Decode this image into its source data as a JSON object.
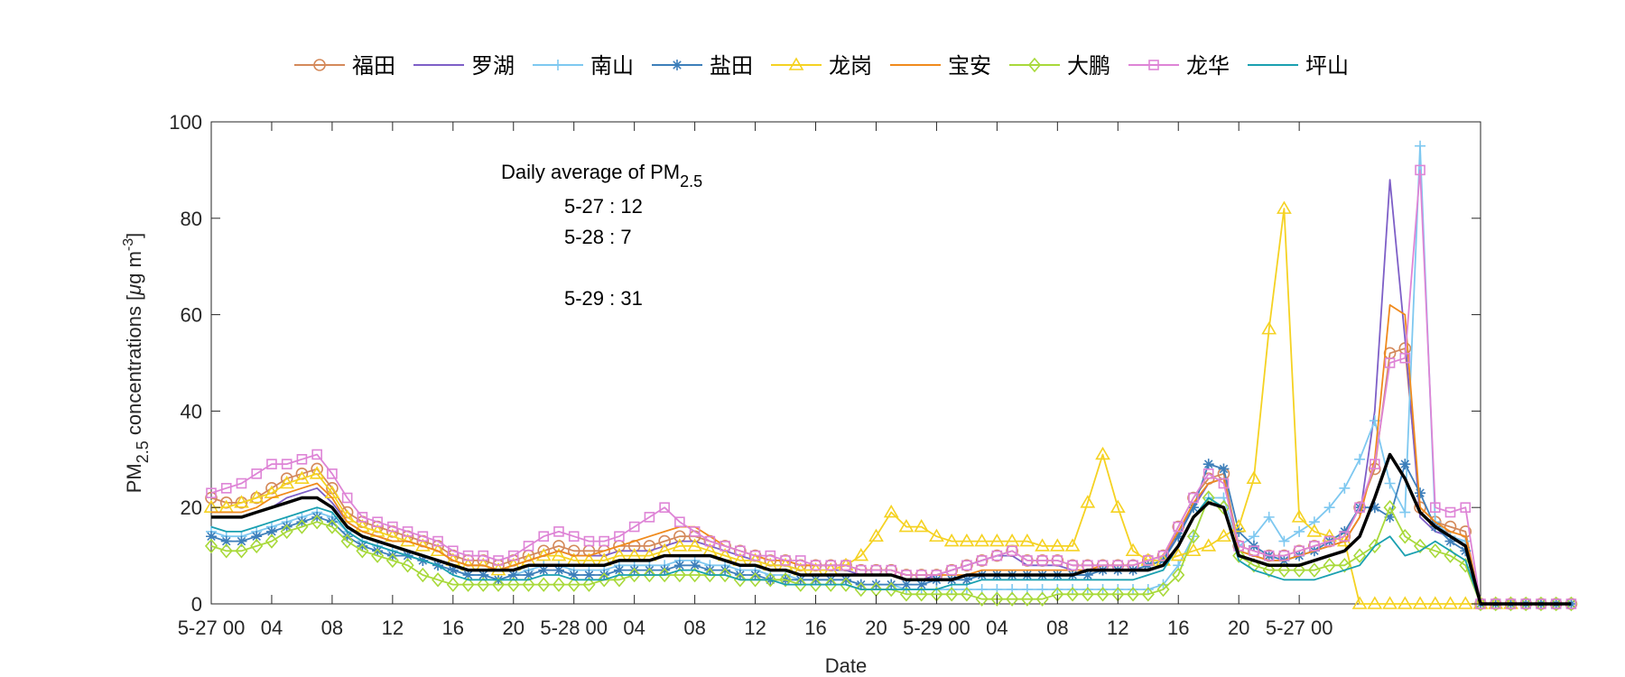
{
  "chart_data": {
    "type": "line",
    "xlabel": "Date",
    "ylabel_parts": {
      "pm": "PM",
      "sub": "2.5",
      "rest": " concentrations [",
      "mu": "μ",
      "unit": "g m",
      "sup": "-3",
      "close": "]"
    },
    "ylim": [
      0,
      100
    ],
    "y_ticks": [
      "0",
      "20",
      "40",
      "60",
      "80",
      "100"
    ],
    "x_range": [
      0,
      84
    ],
    "x_ticks": [
      {
        "pos": 0,
        "label": "5-27 00"
      },
      {
        "pos": 4,
        "label": "04"
      },
      {
        "pos": 8,
        "label": "08"
      },
      {
        "pos": 12,
        "label": "12"
      },
      {
        "pos": 16,
        "label": "16"
      },
      {
        "pos": 20,
        "label": "20"
      },
      {
        "pos": 24,
        "label": "5-28 00"
      },
      {
        "pos": 28,
        "label": "04"
      },
      {
        "pos": 32,
        "label": "08"
      },
      {
        "pos": 36,
        "label": "12"
      },
      {
        "pos": 40,
        "label": "16"
      },
      {
        "pos": 44,
        "label": "20"
      },
      {
        "pos": 48,
        "label": "5-29 00"
      },
      {
        "pos": 52,
        "label": "04"
      },
      {
        "pos": 56,
        "label": "08"
      },
      {
        "pos": 60,
        "label": "12"
      },
      {
        "pos": 64,
        "label": "16"
      },
      {
        "pos": 68,
        "label": "20"
      },
      {
        "pos": 72,
        "label": "5-27 00"
      }
    ],
    "grid": false,
    "legend_position": "top",
    "annotation": {
      "title_main": "Daily average of PM",
      "title_sub": "2.5",
      "lines": [
        "5-27 : 12",
        "5-28 : 7",
        "5-29 : 31"
      ]
    },
    "series": [
      {
        "name": "福田",
        "color": "#d4895a",
        "marker": "circle",
        "values": [
          22,
          21,
          21,
          22,
          24,
          26,
          27,
          28,
          24,
          19,
          17,
          16,
          15,
          14,
          13,
          12,
          10,
          9,
          9,
          8,
          9,
          10,
          11,
          12,
          11,
          11,
          11,
          12,
          12,
          12,
          13,
          14,
          14,
          13,
          12,
          11,
          10,
          9,
          9,
          8,
          8,
          8,
          8,
          7,
          7,
          7,
          6,
          6,
          6,
          7,
          8,
          9,
          10,
          11,
          9,
          9,
          9,
          8,
          8,
          8,
          8,
          8,
          9,
          10,
          16,
          22,
          26,
          27,
          12,
          11,
          10,
          10,
          11,
          12,
          13,
          14,
          20,
          28,
          52,
          53,
          20,
          17,
          16,
          15,
          0,
          0,
          0,
          0,
          0,
          0,
          0
        ]
      },
      {
        "name": "罗湖",
        "color": "#7e5fc7",
        "marker": "none",
        "values": [
          18,
          18,
          18,
          19,
          20,
          22,
          23,
          24,
          21,
          17,
          15,
          14,
          13,
          13,
          12,
          11,
          9,
          8,
          8,
          7,
          8,
          9,
          10,
          11,
          10,
          10,
          10,
          11,
          11,
          11,
          12,
          13,
          13,
          12,
          11,
          10,
          9,
          8,
          8,
          7,
          7,
          7,
          7,
          6,
          6,
          6,
          5,
          5,
          6,
          7,
          8,
          9,
          10,
          10,
          8,
          8,
          8,
          7,
          7,
          7,
          7,
          7,
          8,
          9,
          15,
          20,
          25,
          26,
          11,
          10,
          9,
          9,
          10,
          11,
          12,
          13,
          18,
          40,
          88,
          55,
          18,
          15,
          14,
          13,
          0,
          0,
          0,
          0,
          0,
          0,
          0
        ]
      },
      {
        "name": "南山",
        "color": "#7ec8f0",
        "marker": "plus",
        "values": [
          15,
          14,
          14,
          15,
          16,
          17,
          18,
          19,
          18,
          15,
          13,
          12,
          11,
          10,
          9,
          8,
          7,
          6,
          6,
          5,
          6,
          7,
          8,
          8,
          7,
          7,
          7,
          8,
          8,
          8,
          8,
          9,
          9,
          8,
          8,
          7,
          7,
          6,
          6,
          5,
          5,
          5,
          5,
          4,
          4,
          4,
          3,
          3,
          3,
          3,
          3,
          3,
          3,
          3,
          3,
          3,
          3,
          3,
          3,
          3,
          3,
          3,
          3,
          4,
          8,
          14,
          22,
          22,
          12,
          14,
          18,
          13,
          15,
          17,
          20,
          24,
          30,
          38,
          25,
          19,
          95,
          17,
          14,
          13,
          0,
          0,
          0,
          0,
          0,
          0,
          0
        ]
      },
      {
        "name": "盐田",
        "color": "#3d7fba",
        "marker": "asterisk",
        "values": [
          14,
          13,
          13,
          14,
          15,
          16,
          17,
          18,
          17,
          14,
          12,
          11,
          10,
          10,
          9,
          8,
          7,
          6,
          6,
          5,
          6,
          6,
          7,
          7,
          6,
          6,
          6,
          7,
          7,
          7,
          7,
          8,
          8,
          7,
          7,
          6,
          6,
          5,
          5,
          5,
          5,
          5,
          5,
          4,
          4,
          4,
          4,
          4,
          5,
          5,
          5,
          6,
          6,
          6,
          6,
          6,
          6,
          6,
          6,
          7,
          7,
          7,
          8,
          9,
          14,
          20,
          29,
          28,
          15,
          12,
          10,
          9,
          10,
          11,
          13,
          15,
          20,
          20,
          18,
          29,
          23,
          16,
          13,
          11,
          0,
          0,
          0,
          0,
          0,
          0,
          0
        ]
      },
      {
        "name": "龙岗",
        "color": "#f5d222",
        "marker": "triangle",
        "values": [
          20,
          20,
          21,
          22,
          23,
          25,
          26,
          27,
          23,
          18,
          16,
          15,
          14,
          13,
          12,
          11,
          9,
          8,
          8,
          7,
          8,
          9,
          10,
          10,
          9,
          9,
          9,
          10,
          10,
          10,
          11,
          12,
          12,
          11,
          10,
          9,
          9,
          8,
          8,
          7,
          7,
          7,
          8,
          10,
          14,
          19,
          16,
          16,
          14,
          13,
          13,
          13,
          13,
          13,
          13,
          12,
          12,
          12,
          21,
          31,
          20,
          11,
          9,
          9,
          10,
          11,
          12,
          14,
          16,
          26,
          57,
          82,
          18,
          15,
          14,
          13,
          0,
          0,
          0,
          0,
          0,
          0,
          0,
          0,
          0,
          0,
          0
        ]
      },
      {
        "name": "宝安",
        "color": "#f08a1c",
        "marker": "none",
        "values": [
          19,
          19,
          19,
          20,
          22,
          23,
          24,
          25,
          22,
          17,
          15,
          14,
          13,
          13,
          12,
          11,
          9,
          8,
          8,
          7,
          8,
          9,
          10,
          11,
          10,
          10,
          11,
          12,
          13,
          14,
          15,
          16,
          16,
          14,
          12,
          11,
          10,
          9,
          9,
          8,
          8,
          8,
          8,
          7,
          7,
          7,
          6,
          6,
          6,
          6,
          6,
          7,
          7,
          7,
          7,
          7,
          7,
          7,
          7,
          8,
          8,
          8,
          9,
          10,
          15,
          21,
          25,
          26,
          11,
          10,
          9,
          9,
          10,
          11,
          12,
          13,
          18,
          30,
          62,
          60,
          20,
          17,
          15,
          14,
          0,
          0,
          0,
          0,
          0,
          0,
          0
        ]
      },
      {
        "name": "大鹏",
        "color": "#a8d93a",
        "marker": "diamond",
        "values": [
          12,
          11,
          11,
          12,
          13,
          15,
          16,
          17,
          16,
          13,
          11,
          10,
          9,
          8,
          6,
          5,
          4,
          4,
          4,
          4,
          4,
          4,
          4,
          4,
          4,
          4,
          5,
          5,
          6,
          6,
          6,
          6,
          6,
          6,
          6,
          5,
          5,
          5,
          5,
          4,
          4,
          4,
          4,
          3,
          3,
          3,
          2,
          2,
          2,
          2,
          2,
          1,
          1,
          1,
          1,
          1,
          2,
          2,
          2,
          2,
          2,
          2,
          2,
          3,
          6,
          14,
          22,
          20,
          10,
          8,
          7,
          7,
          7,
          7,
          8,
          8,
          10,
          12,
          20,
          14,
          12,
          11,
          10,
          8,
          0,
          0,
          0,
          0,
          0,
          0,
          0
        ]
      },
      {
        "name": "龙华",
        "color": "#de84d6",
        "marker": "square",
        "values": [
          23,
          24,
          25,
          27,
          29,
          29,
          30,
          31,
          27,
          22,
          18,
          17,
          16,
          15,
          14,
          13,
          11,
          10,
          10,
          9,
          10,
          12,
          14,
          15,
          14,
          13,
          13,
          14,
          16,
          18,
          20,
          17,
          15,
          13,
          12,
          11,
          10,
          10,
          9,
          9,
          8,
          8,
          8,
          7,
          7,
          7,
          6,
          6,
          6,
          7,
          8,
          9,
          10,
          11,
          9,
          9,
          9,
          8,
          8,
          8,
          8,
          8,
          9,
          10,
          16,
          22,
          27,
          25,
          12,
          11,
          10,
          10,
          11,
          12,
          13,
          14,
          20,
          29,
          50,
          51,
          90,
          20,
          19,
          20,
          0,
          0,
          0,
          0,
          0,
          0,
          0
        ]
      },
      {
        "name": "坪山",
        "color": "#1aa0b0",
        "marker": "none",
        "values": [
          16,
          15,
          15,
          16,
          17,
          18,
          19,
          20,
          19,
          15,
          13,
          12,
          11,
          10,
          9,
          8,
          6,
          5,
          5,
          5,
          5,
          5,
          6,
          6,
          5,
          5,
          5,
          6,
          6,
          6,
          6,
          7,
          7,
          6,
          6,
          5,
          5,
          5,
          4,
          4,
          4,
          4,
          4,
          3,
          3,
          3,
          3,
          3,
          3,
          4,
          4,
          5,
          5,
          5,
          5,
          5,
          5,
          5,
          5,
          5,
          5,
          5,
          6,
          7,
          12,
          18,
          22,
          20,
          9,
          7,
          6,
          5,
          5,
          5,
          6,
          7,
          8,
          12,
          14,
          10,
          11,
          13,
          11,
          9,
          0,
          0,
          0,
          0,
          0,
          0,
          0
        ]
      },
      {
        "name": "",
        "color": "#000000",
        "marker": "none",
        "linewidth": 3.5,
        "values": [
          18,
          18,
          18,
          19,
          20,
          21,
          22,
          22,
          20,
          16,
          14,
          13,
          12,
          11,
          10,
          9,
          8,
          7,
          7,
          7,
          7,
          8,
          8,
          8,
          8,
          8,
          8,
          9,
          9,
          9,
          10,
          10,
          10,
          10,
          9,
          8,
          8,
          7,
          7,
          6,
          6,
          6,
          6,
          6,
          6,
          6,
          5,
          5,
          5,
          5,
          6,
          6,
          6,
          6,
          6,
          6,
          6,
          6,
          7,
          7,
          7,
          7,
          7,
          8,
          12,
          18,
          21,
          20,
          10,
          9,
          8,
          8,
          8,
          9,
          10,
          11,
          14,
          22,
          31,
          26,
          19,
          16,
          14,
          12,
          0,
          0,
          0,
          0,
          0,
          0,
          0
        ]
      }
    ]
  }
}
